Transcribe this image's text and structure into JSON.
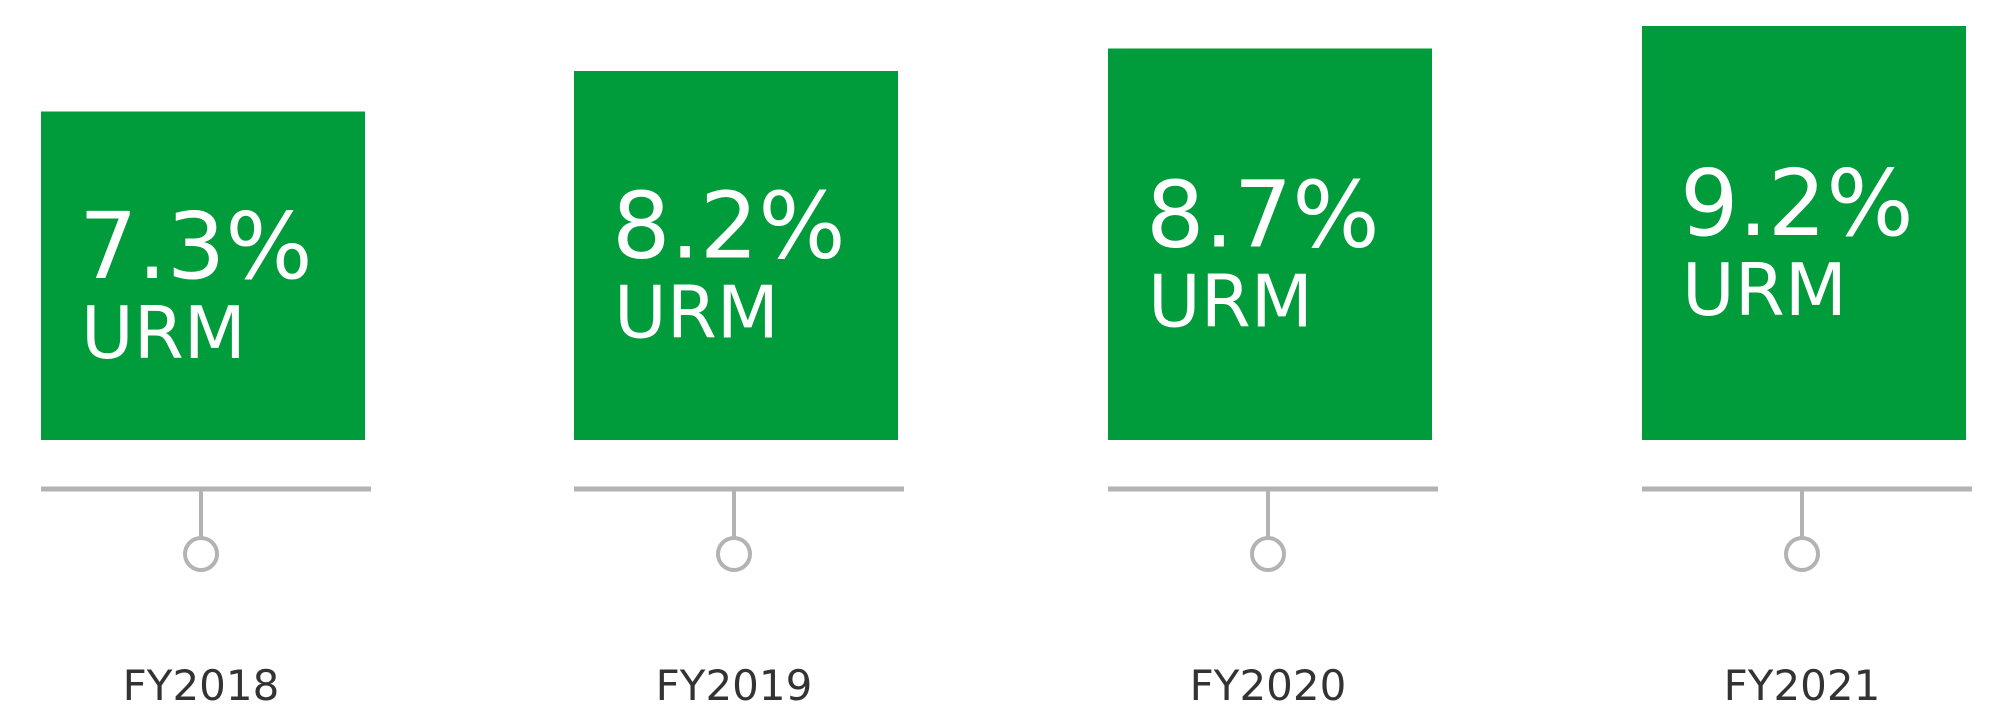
{
  "chart_data": {
    "type": "bar",
    "categories": [
      "FY2018",
      "FY2019",
      "FY2020",
      "FY2021"
    ],
    "values": [
      7.3,
      8.2,
      8.7,
      9.2
    ],
    "value_labels": [
      "7.3%",
      "8.2%",
      "8.7%",
      "9.2%"
    ],
    "unit_label": "URM",
    "color": "#009b3a"
  }
}
